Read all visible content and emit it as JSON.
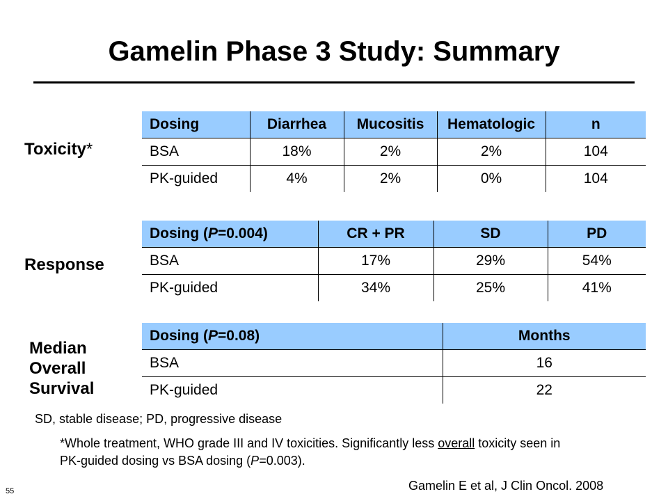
{
  "title": "Gamelin Phase 3 Study: Summary",
  "sections": {
    "toxicity": {
      "label": "Toxicity",
      "label_suffix": "*",
      "headers": [
        "Dosing",
        "Diarrhea",
        "Mucositis",
        "Hematologic",
        "n"
      ],
      "rows": [
        [
          "BSA",
          "18%",
          "2%",
          "2%",
          "104"
        ],
        [
          "PK-guided",
          "4%",
          "2%",
          "0%",
          "104"
        ]
      ]
    },
    "response": {
      "label": "Response",
      "header_dosing_pre": "Dosing (",
      "header_p_symbol": "P",
      "header_p_value": "=0.004)",
      "headers": [
        "CR + PR",
        "SD",
        "PD"
      ],
      "rows": [
        [
          "BSA",
          "17%",
          "29%",
          "54%"
        ],
        [
          "PK-guided",
          "34%",
          "25%",
          "41%"
        ]
      ]
    },
    "survival": {
      "label_lines": [
        "Median",
        "Overall",
        "Survival"
      ],
      "header_dosing_pre": "Dosing (",
      "header_p_symbol": "P",
      "header_p_value": "=0.08)",
      "headers": [
        "Months"
      ],
      "rows": [
        [
          "BSA",
          "16"
        ],
        [
          "PK-guided",
          "22"
        ]
      ]
    }
  },
  "footnotes": {
    "abbrev": "SD, stable disease; PD, progressive disease",
    "star_line1_pre": "*Whole treatment, WHO grade III and IV toxicities. Significantly less ",
    "star_line1_underlined": "overall",
    "star_line1_post": " toxicity seen in",
    "star_line2_pre": "PK-guided dosing vs BSA dosing (",
    "star_line2_p": "P",
    "star_line2_post": "=0.003)."
  },
  "slide_number": "55",
  "citation": "Gamelin E et al, J Clin Oncol. 2008"
}
